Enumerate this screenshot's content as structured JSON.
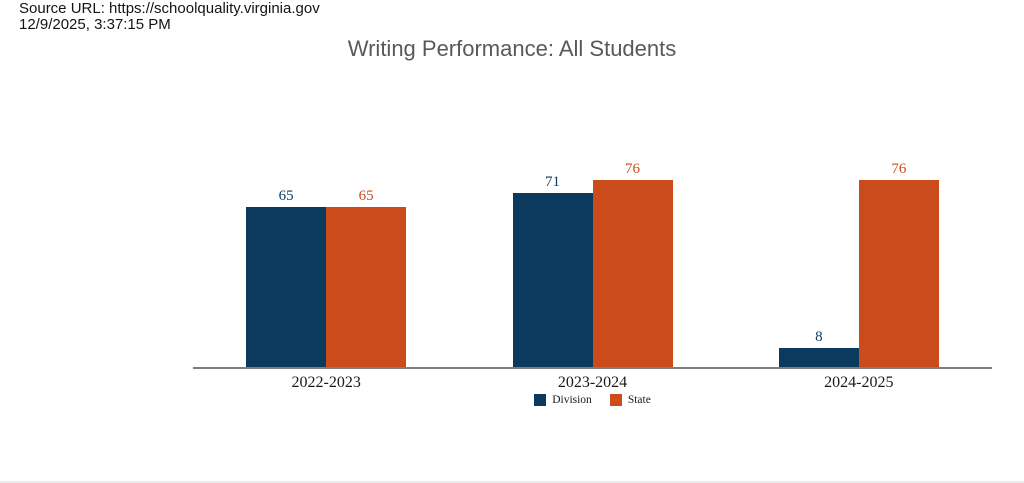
{
  "header": {
    "source_url_label": "Source URL: https://schoolquality.virginia.gov",
    "timestamp": "12/9/2025, 3:37:15 PM"
  },
  "chart_data": {
    "type": "bar",
    "title": "Writing Performance: All Students",
    "categories": [
      "2022-2023",
      "2023-2024",
      "2024-2025"
    ],
    "series": [
      {
        "name": "Division",
        "color": "#0c3a5f",
        "values": [
          65,
          71,
          8
        ]
      },
      {
        "name": "State",
        "color": "#cb4b1a",
        "values": [
          65,
          76,
          76
        ]
      }
    ],
    "xlabel": "",
    "ylabel": "",
    "value_labels_shown": true,
    "gridlines": false,
    "legend_position": "bottom"
  },
  "colors": {
    "division": "#0c3a5f",
    "state": "#cb4b1a",
    "axis_line": "#7d7d7d",
    "title_text": "#58595b",
    "header_text": "#141414"
  }
}
